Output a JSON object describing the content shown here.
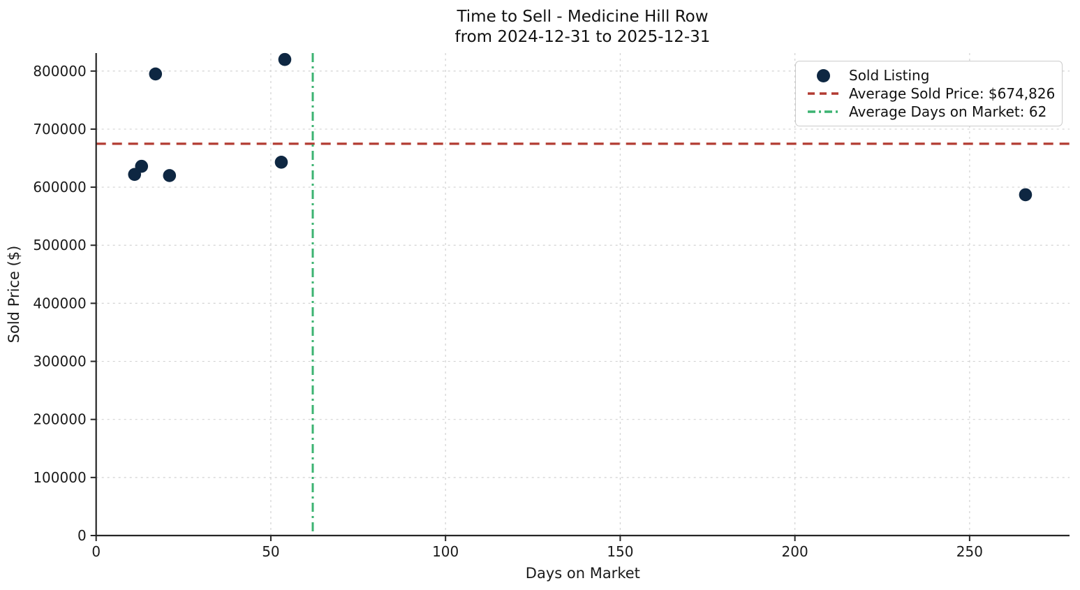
{
  "title": {
    "line1": "Time to Sell - Medicine Hill Row",
    "line2": "from 2024-12-31 to 2025-12-31"
  },
  "legend": {
    "items": [
      {
        "label": "Sold Listing",
        "marker": "dot"
      },
      {
        "label": "Average Sold Price: $674,826",
        "marker": "dashed-line"
      },
      {
        "label": "Average Days on Market: 62",
        "marker": "dashdot-line"
      }
    ]
  },
  "colors": {
    "point": "#0e2742",
    "avg_price_line": "#b23b32",
    "avg_days_line": "#3cb371",
    "grid": "#d2d2d2",
    "spine": "#262626",
    "text": "#1a1a1a"
  },
  "chart_data": {
    "type": "scatter",
    "title": "Time to Sell - Medicine Hill Row\nfrom 2024-12-31 to 2025-12-31",
    "xlabel": "Days on Market",
    "ylabel": "Sold Price ($)",
    "xlim": [
      0,
      278.6
    ],
    "ylim": [
      0,
      831000
    ],
    "x_ticks": [
      0,
      50,
      100,
      150,
      200,
      250
    ],
    "y_ticks": [
      0,
      100000,
      200000,
      300000,
      400000,
      500000,
      600000,
      700000,
      800000
    ],
    "grid": true,
    "legend_position": "upper right",
    "series": [
      {
        "name": "Sold Listing",
        "type": "scatter",
        "points": [
          {
            "days_on_market": 11,
            "sold_price": 622000
          },
          {
            "days_on_market": 13,
            "sold_price": 636000
          },
          {
            "days_on_market": 17,
            "sold_price": 795000
          },
          {
            "days_on_market": 21,
            "sold_price": 620000
          },
          {
            "days_on_market": 53,
            "sold_price": 643000
          },
          {
            "days_on_market": 54,
            "sold_price": 820000
          },
          {
            "days_on_market": 266,
            "sold_price": 587000
          }
        ]
      }
    ],
    "reference_lines": [
      {
        "name": "Average Sold Price: $674,826",
        "orientation": "horizontal",
        "value": 674826,
        "style": "dashed"
      },
      {
        "name": "Average Days on Market: 62",
        "orientation": "vertical",
        "value": 62,
        "style": "dashdot"
      }
    ]
  }
}
